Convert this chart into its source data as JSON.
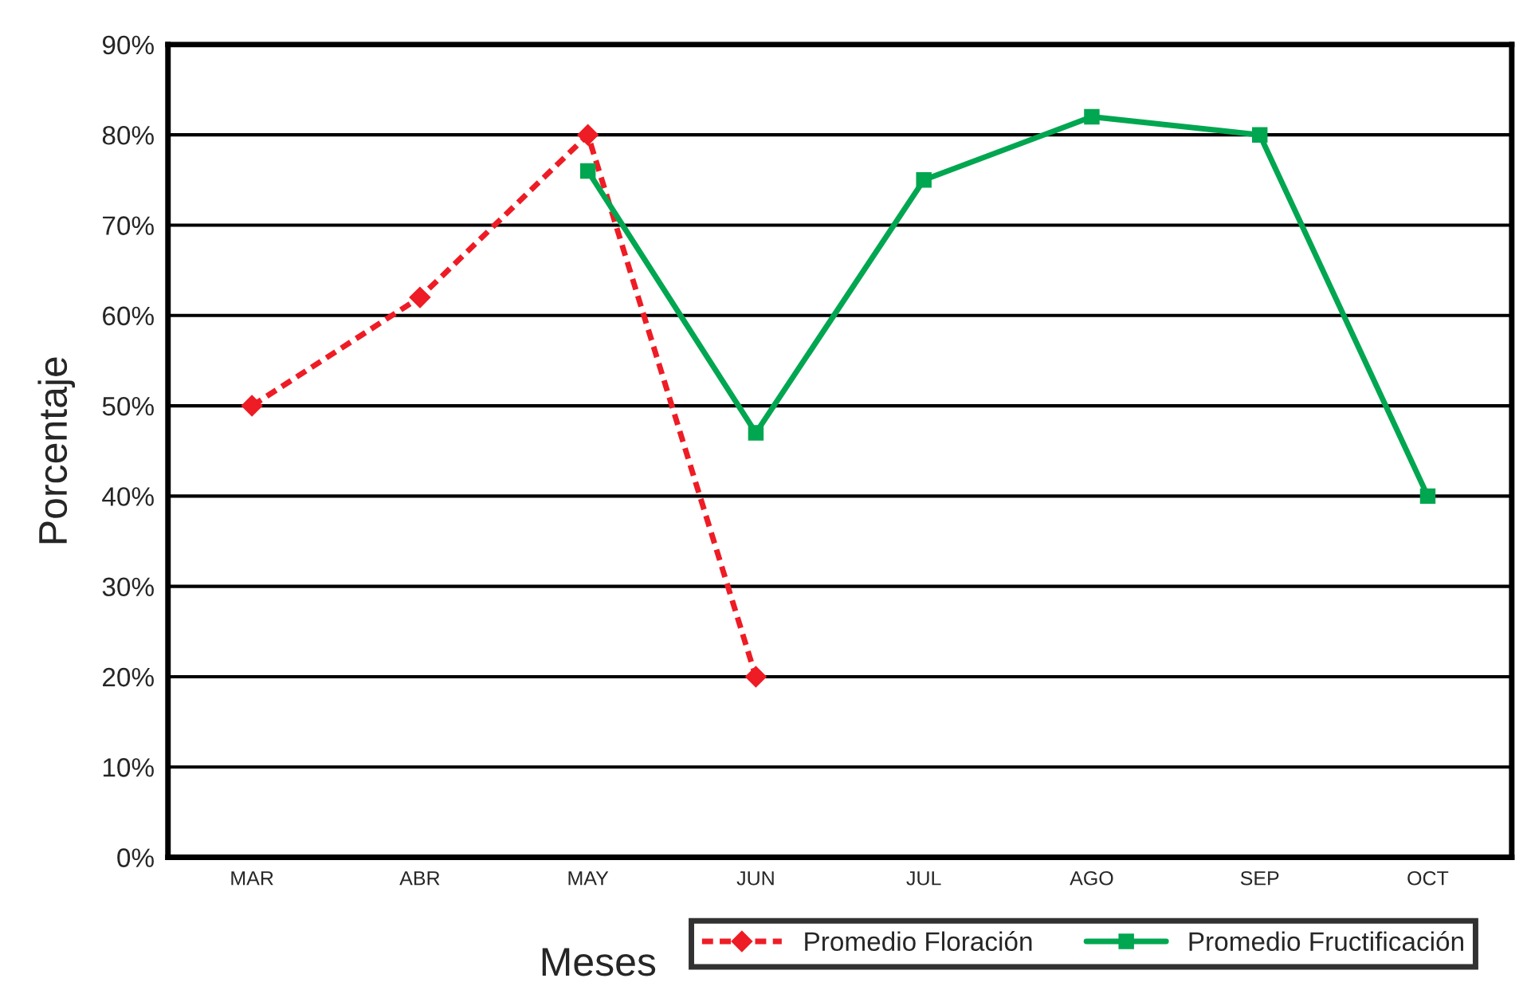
{
  "chart_data": {
    "type": "line",
    "xlabel": "Meses",
    "ylabel": "Porcentaje",
    "categories": [
      "MAR",
      "ABR",
      "MAY",
      "JUN",
      "JUL",
      "AGO",
      "SEP",
      "OCT"
    ],
    "series": [
      {
        "name": "Promedio Floración",
        "color": "#ee1c25",
        "marker": "diamond",
        "line_style": "dashed",
        "values": [
          50,
          62,
          80,
          20,
          null,
          null,
          null,
          null
        ]
      },
      {
        "name": "Promedio Fructificación",
        "color": "#00a650",
        "marker": "square",
        "line_style": "solid",
        "values": [
          null,
          null,
          76,
          47,
          75,
          82,
          80,
          40
        ]
      }
    ],
    "ylim": [
      0,
      90
    ],
    "yticks": [
      {
        "value": 0,
        "label": "0%"
      },
      {
        "value": 10,
        "label": "10%"
      },
      {
        "value": 20,
        "label": "20%"
      },
      {
        "value": 30,
        "label": "30%"
      },
      {
        "value": 40,
        "label": "40%"
      },
      {
        "value": 50,
        "label": "50%"
      },
      {
        "value": 60,
        "label": "60%"
      },
      {
        "value": 70,
        "label": "70%"
      },
      {
        "value": 80,
        "label": "80%"
      },
      {
        "value": 90,
        "label": "90%"
      }
    ],
    "grid": "y",
    "legend": "bottom right"
  }
}
